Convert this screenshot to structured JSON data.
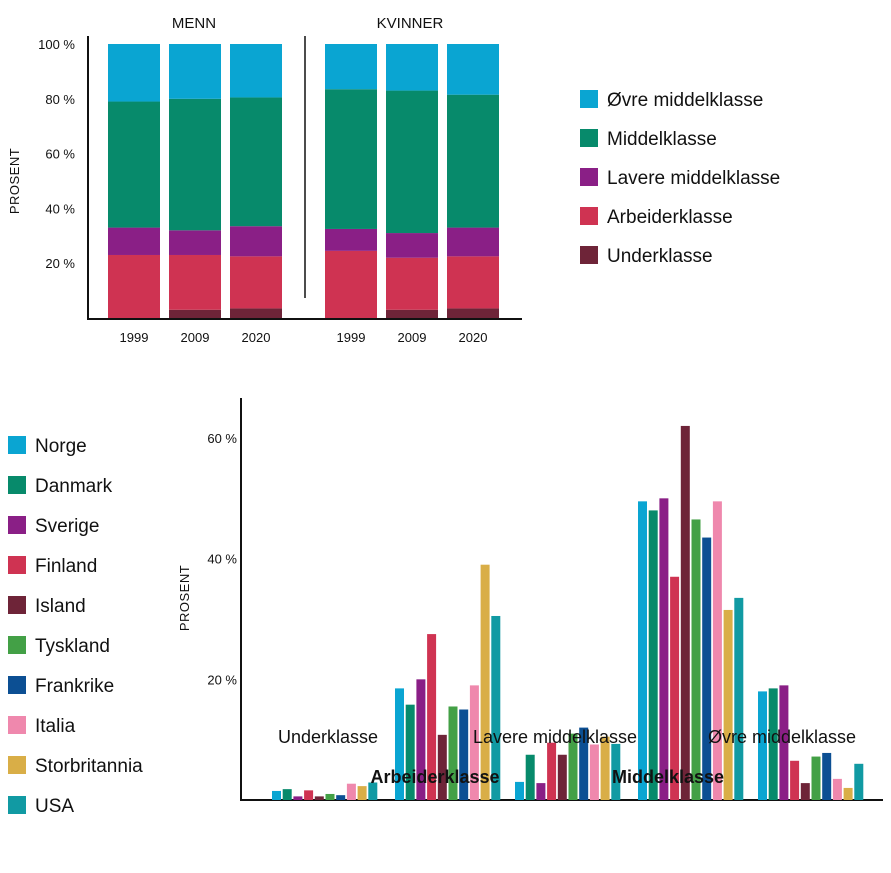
{
  "colors": {
    "ovre_middelklasse": "#0aa5d2",
    "middelklasse": "#078a6b",
    "lavere_middelklasse": "#8a1f86",
    "arbeiderklasse": "#cf3352",
    "underklasse": "#6e2438",
    "Norge": "#0aa5d2",
    "Danmark": "#078a6b",
    "Sverige": "#8a1f86",
    "Finland": "#cf3352",
    "Island": "#6e2438",
    "Tyskland": "#43a046",
    "Frankrike": "#0c4f93",
    "Italia": "#ef88ad",
    "Storbritannia": "#d9ae47",
    "USA": "#119aa3"
  },
  "chart_data": [
    {
      "type": "bar",
      "stacked": true,
      "ylabel": "PROSENT",
      "ylim": [
        0,
        100
      ],
      "yticks": [
        20,
        40,
        60,
        80,
        100
      ],
      "ytick_labels": [
        "20 %",
        "40 %",
        "60 %",
        "80 %",
        "100 %"
      ],
      "legend_position": "right",
      "groups": [
        {
          "title": "MENN",
          "categories": [
            "1999",
            "2009",
            "2020"
          ],
          "series": [
            {
              "name": "Underklasse",
              "values": [
                0,
                3,
                3.5
              ]
            },
            {
              "name": "Arbeiderklasse",
              "values": [
                23,
                20,
                19
              ]
            },
            {
              "name": "Lavere middelklasse",
              "values": [
                10,
                9,
                11
              ]
            },
            {
              "name": "Middelklasse",
              "values": [
                46,
                48,
                47
              ]
            },
            {
              "name": "Øvre middelklasse",
              "values": [
                21,
                20,
                19.5
              ]
            }
          ]
        },
        {
          "title": "KVINNER",
          "categories": [
            "1999",
            "2009",
            "2020"
          ],
          "series": [
            {
              "name": "Underklasse",
              "values": [
                0,
                3,
                3.5
              ]
            },
            {
              "name": "Arbeiderklasse",
              "values": [
                24.5,
                19,
                19
              ]
            },
            {
              "name": "Lavere middelklasse",
              "values": [
                8,
                9,
                10.5
              ]
            },
            {
              "name": "Middelklasse",
              "values": [
                51,
                52,
                48.5
              ]
            },
            {
              "name": "Øvre middelklasse",
              "values": [
                16.5,
                17,
                18.5
              ]
            }
          ]
        }
      ],
      "legend": [
        "Øvre middelklasse",
        "Middelklasse",
        "Lavere middelklasse",
        "Arbeiderklasse",
        "Underklasse"
      ]
    },
    {
      "type": "bar",
      "ylabel": "PROSENT",
      "ylim": [
        0,
        67
      ],
      "yticks": [
        20,
        40,
        60
      ],
      "ytick_labels": [
        "20 %",
        "40 %",
        "60 %"
      ],
      "legend_position": "left",
      "categories": [
        "Underklasse",
        "Arbeiderklasse",
        "Lavere middelklasse",
        "Middelklasse",
        "Øvre middelklasse"
      ],
      "bold_categories": [
        "Arbeiderklasse",
        "Middelklasse"
      ],
      "series": [
        {
          "name": "Norge",
          "values": [
            1.5,
            18.5,
            3,
            49.5,
            18
          ]
        },
        {
          "name": "Danmark",
          "values": [
            1.8,
            15.8,
            7.5,
            48,
            18.5
          ]
        },
        {
          "name": "Sverige",
          "values": [
            0.6,
            20,
            2.8,
            50,
            19
          ]
        },
        {
          "name": "Finland",
          "values": [
            1.6,
            27.5,
            9.5,
            37,
            6.5
          ]
        },
        {
          "name": "Island",
          "values": [
            0.6,
            10.8,
            7.5,
            62,
            2.8
          ]
        },
        {
          "name": "Tyskland",
          "values": [
            1,
            15.5,
            11,
            46.5,
            7.2
          ]
        },
        {
          "name": "Frankrike",
          "values": [
            0.8,
            15,
            12,
            43.5,
            7.8
          ]
        },
        {
          "name": "Italia",
          "values": [
            2.7,
            19,
            9.2,
            49.5,
            3.5
          ]
        },
        {
          "name": "Storbritannia",
          "values": [
            2.3,
            39,
            10.5,
            31.5,
            2
          ]
        },
        {
          "name": "USA",
          "values": [
            2.9,
            30.5,
            9.3,
            33.5,
            6
          ]
        }
      ]
    }
  ]
}
